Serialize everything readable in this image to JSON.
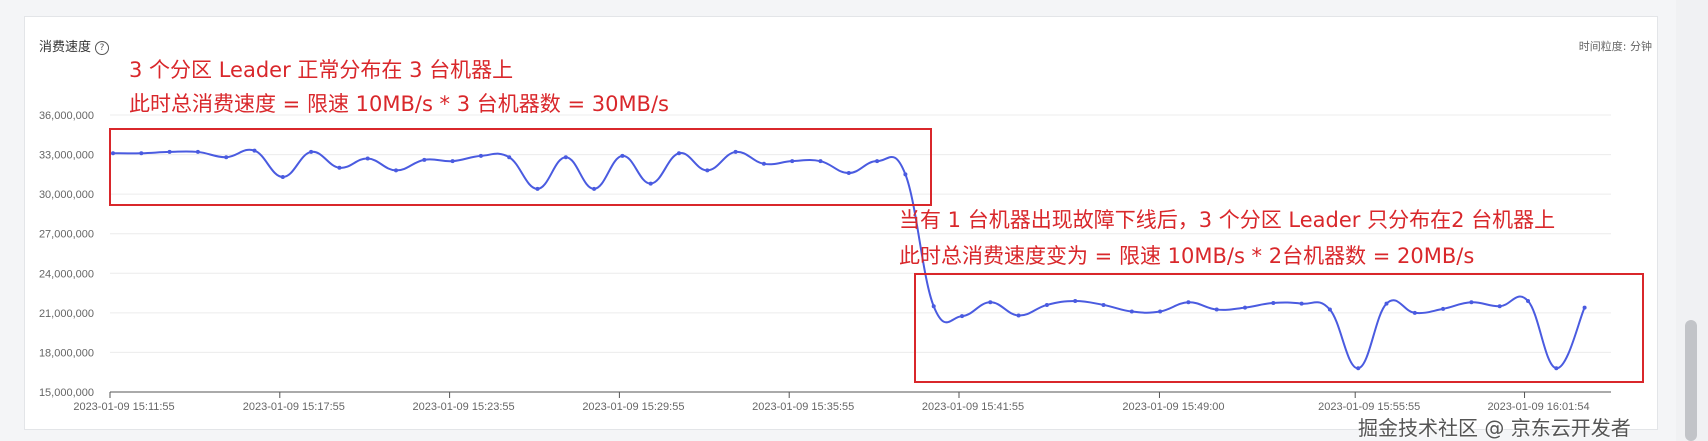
{
  "panel": {
    "title": "消费速度",
    "help_icon": "question-circle-icon",
    "granularity": "时间粒度: 分钟"
  },
  "annotations": {
    "box1_line1": "3 个分区 Leader 正常分布在 3 台机器上",
    "box1_line2": "此时总消费速度 = 限速 10MB/s * 3 台机器数 = 30MB/s",
    "box2_line1": "当有 1 台机器出现故障下线后，3 个分区 Leader 只分布在2 台机器上",
    "box2_line2": "此时总消费速度变为 = 限速 10MB/s * 2台机器数 = 20MB/s",
    "box_color": "#d9272b"
  },
  "watermark": "掘金技术社区 @ 京东云开发者",
  "chart_data": {
    "type": "line",
    "smooth": true,
    "color": "#4a5be0",
    "ylim": [
      15000000,
      36000000
    ],
    "yticks": [
      "15,000,000",
      "18,000,000",
      "21,000,000",
      "24,000,000",
      "27,000,000",
      "30,000,000",
      "33,000,000",
      "36,000,000"
    ],
    "xticks": [
      "2023-01-09 15:11:55",
      "2023-01-09 15:17:55",
      "2023-01-09 15:23:55",
      "2023-01-09 15:29:55",
      "2023-01-09 15:35:55",
      "2023-01-09 15:41:55",
      "2023-01-09 15:49:00",
      "2023-01-09 15:55:55",
      "2023-01-09 16:01:54"
    ],
    "grid": true,
    "x_start": "2023-01-09 15:11:55",
    "x_interval": "1 minute",
    "values": [
      33100000,
      33100000,
      33200000,
      33200000,
      32800000,
      33300000,
      31300000,
      33200000,
      32000000,
      32700000,
      31800000,
      32600000,
      32500000,
      32900000,
      32800000,
      30400000,
      32800000,
      30400000,
      32900000,
      30800000,
      33100000,
      31800000,
      33200000,
      32300000,
      32500000,
      32500000,
      31600000,
      32500000,
      31500000,
      21500000,
      20750000,
      21800000,
      20800000,
      21600000,
      21900000,
      21600000,
      21100000,
      21100000,
      21800000,
      21250000,
      21400000,
      21750000,
      21700000,
      21250000,
      16800000,
      21700000,
      21000000,
      21300000,
      21800000,
      21500000,
      21900000,
      16800000,
      21400000
    ]
  }
}
